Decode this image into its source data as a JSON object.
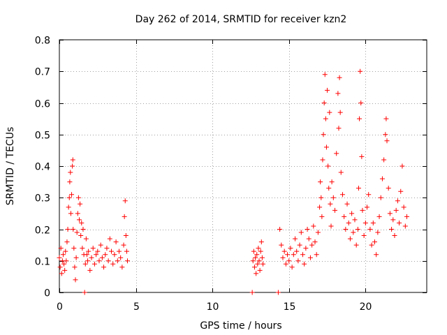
{
  "chart_data": {
    "type": "scatter",
    "title": "Day 262 of 2014, SRMTID for receiver kzn2",
    "xlabel": "GPS time / hours",
    "ylabel": "SRMTID / TECUs",
    "xlim": [
      0,
      24
    ],
    "ylim": [
      0,
      0.8
    ],
    "x_ticks": [
      0,
      5,
      10,
      15,
      20
    ],
    "y_ticks": [
      0,
      0.1,
      0.2,
      0.3,
      0.4,
      0.5,
      0.6,
      0.7,
      0.8
    ],
    "x_tick_labels": [
      "0",
      "5",
      "10",
      "15",
      "20"
    ],
    "y_tick_labels": [
      "0",
      "0.1",
      "0.2",
      "0.3",
      "0.4",
      "0.5",
      "0.6",
      "0.7",
      "0.8"
    ],
    "grid": true,
    "marker": "+",
    "color": "#ff0000",
    "series": [
      {
        "name": "SRMTID kzn2",
        "points": [
          [
            0.0,
            0.11
          ],
          [
            0.05,
            0.08
          ],
          [
            0.1,
            0.14
          ],
          [
            0.15,
            0.06
          ],
          [
            0.2,
            0.1
          ],
          [
            0.25,
            0.12
          ],
          [
            0.3,
            0.09
          ],
          [
            0.35,
            0.07
          ],
          [
            0.4,
            0.13
          ],
          [
            0.45,
            0.1
          ],
          [
            0.5,
            0.16
          ],
          [
            0.55,
            0.2
          ],
          [
            0.6,
            0.27
          ],
          [
            0.65,
            0.3
          ],
          [
            0.68,
            0.35
          ],
          [
            0.72,
            0.38
          ],
          [
            0.75,
            0.25
          ],
          [
            0.8,
            0.31
          ],
          [
            0.85,
            0.4
          ],
          [
            0.88,
            0.42
          ],
          [
            0.9,
            0.2
          ],
          [
            0.95,
            0.14
          ],
          [
            1.0,
            0.08
          ],
          [
            1.05,
            0.04
          ],
          [
            1.1,
            0.11
          ],
          [
            1.15,
            0.19
          ],
          [
            1.2,
            0.25
          ],
          [
            1.25,
            0.3
          ],
          [
            1.3,
            0.23
          ],
          [
            1.35,
            0.28
          ],
          [
            1.4,
            0.18
          ],
          [
            1.45,
            0.22
          ],
          [
            1.5,
            0.14
          ],
          [
            1.55,
            0.2
          ],
          [
            1.6,
            0.12
          ],
          [
            1.65,
            0.0
          ],
          [
            1.7,
            0.09
          ],
          [
            1.75,
            0.17
          ],
          [
            1.8,
            0.12
          ],
          [
            1.85,
            0.1
          ],
          [
            1.9,
            0.13
          ],
          [
            2.0,
            0.07
          ],
          [
            2.1,
            0.11
          ],
          [
            2.2,
            0.14
          ],
          [
            2.3,
            0.09
          ],
          [
            2.4,
            0.12
          ],
          [
            2.5,
            0.13
          ],
          [
            2.6,
            0.1
          ],
          [
            2.7,
            0.15
          ],
          [
            2.8,
            0.11
          ],
          [
            2.9,
            0.08
          ],
          [
            3.0,
            0.12
          ],
          [
            3.1,
            0.14
          ],
          [
            3.2,
            0.1
          ],
          [
            3.3,
            0.17
          ],
          [
            3.4,
            0.13
          ],
          [
            3.5,
            0.09
          ],
          [
            3.6,
            0.12
          ],
          [
            3.7,
            0.16
          ],
          [
            3.8,
            0.1
          ],
          [
            3.9,
            0.13
          ],
          [
            4.0,
            0.11
          ],
          [
            4.1,
            0.08
          ],
          [
            4.2,
            0.15
          ],
          [
            4.25,
            0.24
          ],
          [
            4.3,
            0.29
          ],
          [
            4.35,
            0.18
          ],
          [
            4.4,
            0.13
          ],
          [
            4.45,
            0.1
          ],
          [
            12.6,
            0.0
          ],
          [
            12.65,
            0.1
          ],
          [
            12.7,
            0.13
          ],
          [
            12.75,
            0.08
          ],
          [
            12.8,
            0.11
          ],
          [
            12.85,
            0.06
          ],
          [
            12.9,
            0.12
          ],
          [
            12.95,
            0.09
          ],
          [
            13.0,
            0.14
          ],
          [
            13.05,
            0.1
          ],
          [
            13.1,
            0.07
          ],
          [
            13.15,
            0.13
          ],
          [
            13.2,
            0.16
          ],
          [
            13.25,
            0.11
          ],
          [
            13.3,
            0.09
          ],
          [
            14.3,
            0.0
          ],
          [
            14.4,
            0.2
          ],
          [
            14.5,
            0.15
          ],
          [
            14.6,
            0.11
          ],
          [
            14.7,
            0.13
          ],
          [
            14.8,
            0.09
          ],
          [
            14.9,
            0.12
          ],
          [
            15.0,
            0.1
          ],
          [
            15.1,
            0.14
          ],
          [
            15.2,
            0.08
          ],
          [
            15.3,
            0.12
          ],
          [
            15.4,
            0.17
          ],
          [
            15.5,
            0.13
          ],
          [
            15.6,
            0.1
          ],
          [
            15.7,
            0.15
          ],
          [
            15.8,
            0.19
          ],
          [
            15.9,
            0.12
          ],
          [
            16.0,
            0.09
          ],
          [
            16.1,
            0.14
          ],
          [
            16.2,
            0.2
          ],
          [
            16.3,
            0.17
          ],
          [
            16.4,
            0.11
          ],
          [
            16.5,
            0.15
          ],
          [
            16.6,
            0.21
          ],
          [
            16.7,
            0.16
          ],
          [
            16.8,
            0.12
          ],
          [
            16.9,
            0.19
          ],
          [
            17.0,
            0.27
          ],
          [
            17.05,
            0.35
          ],
          [
            17.1,
            0.3
          ],
          [
            17.15,
            0.24
          ],
          [
            17.2,
            0.42
          ],
          [
            17.25,
            0.5
          ],
          [
            17.3,
            0.6
          ],
          [
            17.35,
            0.69
          ],
          [
            17.4,
            0.55
          ],
          [
            17.45,
            0.46
          ],
          [
            17.5,
            0.64
          ],
          [
            17.55,
            0.4
          ],
          [
            17.6,
            0.33
          ],
          [
            17.65,
            0.57
          ],
          [
            17.7,
            0.28
          ],
          [
            17.75,
            0.21
          ],
          [
            17.8,
            0.35
          ],
          [
            17.9,
            0.3
          ],
          [
            18.0,
            0.26
          ],
          [
            18.1,
            0.44
          ],
          [
            18.2,
            0.63
          ],
          [
            18.25,
            0.52
          ],
          [
            18.3,
            0.68
          ],
          [
            18.35,
            0.57
          ],
          [
            18.4,
            0.38
          ],
          [
            18.5,
            0.31
          ],
          [
            18.6,
            0.24
          ],
          [
            18.7,
            0.2
          ],
          [
            18.8,
            0.28
          ],
          [
            18.9,
            0.22
          ],
          [
            19.0,
            0.17
          ],
          [
            19.1,
            0.25
          ],
          [
            19.2,
            0.19
          ],
          [
            19.3,
            0.23
          ],
          [
            19.4,
            0.15
          ],
          [
            19.5,
            0.2
          ],
          [
            19.55,
            0.33
          ],
          [
            19.6,
            0.55
          ],
          [
            19.65,
            0.7
          ],
          [
            19.7,
            0.6
          ],
          [
            19.75,
            0.43
          ],
          [
            19.8,
            0.26
          ],
          [
            19.9,
            0.18
          ],
          [
            20.0,
            0.22
          ],
          [
            20.1,
            0.27
          ],
          [
            20.2,
            0.31
          ],
          [
            20.3,
            0.2
          ],
          [
            20.4,
            0.15
          ],
          [
            20.5,
            0.22
          ],
          [
            20.6,
            0.16
          ],
          [
            20.7,
            0.12
          ],
          [
            20.8,
            0.19
          ],
          [
            20.9,
            0.24
          ],
          [
            21.0,
            0.3
          ],
          [
            21.1,
            0.36
          ],
          [
            21.2,
            0.42
          ],
          [
            21.3,
            0.5
          ],
          [
            21.35,
            0.55
          ],
          [
            21.4,
            0.48
          ],
          [
            21.5,
            0.33
          ],
          [
            21.6,
            0.25
          ],
          [
            21.7,
            0.2
          ],
          [
            21.8,
            0.23
          ],
          [
            21.9,
            0.18
          ],
          [
            22.0,
            0.26
          ],
          [
            22.1,
            0.29
          ],
          [
            22.2,
            0.22
          ],
          [
            22.3,
            0.32
          ],
          [
            22.4,
            0.4
          ],
          [
            22.5,
            0.27
          ],
          [
            22.6,
            0.21
          ],
          [
            22.7,
            0.24
          ]
        ]
      }
    ]
  }
}
